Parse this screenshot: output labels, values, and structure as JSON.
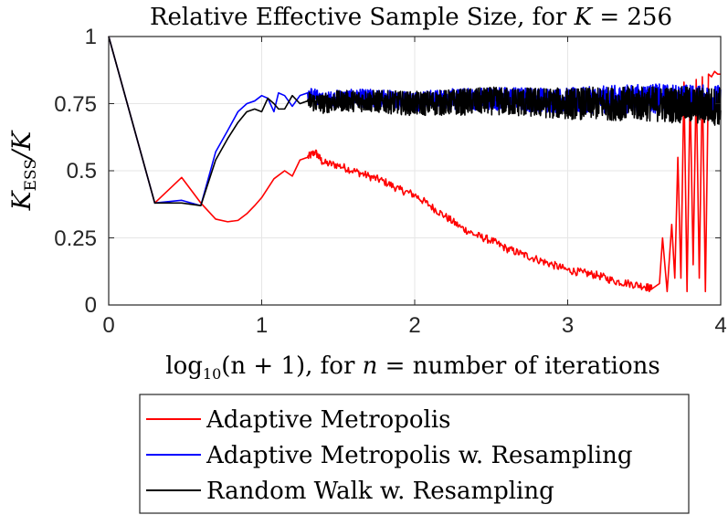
{
  "chart_data": {
    "type": "line",
    "title_main": "Relative Effective Sample Size, for ",
    "title_var": "K",
    "title_eq": " = 256",
    "title": "Relative Effective Sample Size, for K = 256",
    "xlabel_func": "log",
    "xlabel_sub": "10",
    "xlabel_arg": "(n + 1), for ",
    "xlabel_var": "n",
    "xlabel_rest": " = number of iterations",
    "xlabel": "log10(n + 1), for n = number of iterations",
    "ylabel_main": "K",
    "ylabel_sub": "ESS",
    "ylabel_div": "/K",
    "ylabel": "K_ESS / K",
    "xlim": [
      0,
      4
    ],
    "ylim": [
      0,
      1
    ],
    "xticks": [
      0,
      1,
      2,
      3,
      4
    ],
    "xtick_labels": [
      "0",
      "1",
      "2",
      "3",
      "4"
    ],
    "yticks": [
      0,
      0.25,
      0.5,
      0.75,
      1
    ],
    "ytick_labels": [
      "0",
      "0.25",
      "0.5",
      "0.75",
      "1"
    ],
    "grid": true,
    "legend_position": "below-plot",
    "series": [
      {
        "name": "Adaptive Metropolis",
        "color": "#ff0000",
        "x": [
          0,
          0.301,
          0.477,
          0.602,
          0.699,
          0.778,
          0.845,
          0.903,
          0.954,
          1.0,
          1.08,
          1.15,
          1.2,
          1.25,
          1.3,
          1.35,
          1.4,
          1.5,
          1.6,
          1.7,
          1.8,
          1.9,
          2.0,
          2.1,
          2.2,
          2.3,
          2.4,
          2.5,
          2.6,
          2.7,
          2.8,
          2.9,
          3.0,
          3.1,
          3.2,
          3.3,
          3.4,
          3.5,
          3.55,
          3.6,
          3.62,
          3.65,
          3.68,
          3.7,
          3.72,
          3.74,
          3.76,
          3.78,
          3.8,
          3.82,
          3.84,
          3.86,
          3.88,
          3.9,
          3.92,
          3.94,
          3.96,
          3.98,
          4.0
        ],
        "y": [
          1.0,
          0.38,
          0.475,
          0.38,
          0.32,
          0.31,
          0.315,
          0.34,
          0.37,
          0.4,
          0.47,
          0.5,
          0.48,
          0.54,
          0.55,
          0.57,
          0.53,
          0.52,
          0.5,
          0.48,
          0.46,
          0.43,
          0.41,
          0.37,
          0.33,
          0.29,
          0.26,
          0.24,
          0.21,
          0.19,
          0.17,
          0.15,
          0.13,
          0.12,
          0.11,
          0.09,
          0.08,
          0.07,
          0.06,
          0.08,
          0.25,
          0.05,
          0.3,
          0.1,
          0.55,
          0.1,
          0.83,
          0.05,
          0.8,
          0.15,
          0.84,
          0.1,
          0.85,
          0.05,
          0.86,
          0.85,
          0.87,
          0.86,
          0.86
        ]
      },
      {
        "name": "Adaptive Metropolis w. Resampling",
        "color": "#0000ff",
        "x": [
          0,
          0.301,
          0.477,
          0.602,
          0.699,
          0.778,
          0.845,
          0.903,
          0.954,
          1.0,
          1.04,
          1.08,
          1.11,
          1.15,
          1.2,
          1.25,
          1.3,
          1.4,
          1.5,
          1.7,
          2.0,
          2.5,
          3.0,
          3.5,
          4.0
        ],
        "y": [
          1.0,
          0.38,
          0.39,
          0.37,
          0.57,
          0.65,
          0.72,
          0.75,
          0.76,
          0.78,
          0.77,
          0.72,
          0.79,
          0.78,
          0.74,
          0.78,
          0.79,
          0.76,
          0.77,
          0.77,
          0.76,
          0.77,
          0.76,
          0.77,
          0.76
        ],
        "noise": 0.05
      },
      {
        "name": "Random Walk w. Resampling",
        "color": "#000000",
        "x": [
          0,
          0.301,
          0.477,
          0.602,
          0.699,
          0.778,
          0.845,
          0.903,
          0.954,
          1.0,
          1.04,
          1.08,
          1.11,
          1.15,
          1.2,
          1.25,
          1.3,
          1.4,
          1.5,
          1.7,
          2.0,
          2.5,
          3.0,
          3.5,
          4.0
        ],
        "y": [
          1.0,
          0.38,
          0.38,
          0.37,
          0.54,
          0.62,
          0.68,
          0.72,
          0.73,
          0.72,
          0.77,
          0.75,
          0.73,
          0.73,
          0.78,
          0.75,
          0.76,
          0.75,
          0.76,
          0.76,
          0.75,
          0.76,
          0.75,
          0.75,
          0.74
        ],
        "noise": 0.06
      }
    ]
  }
}
